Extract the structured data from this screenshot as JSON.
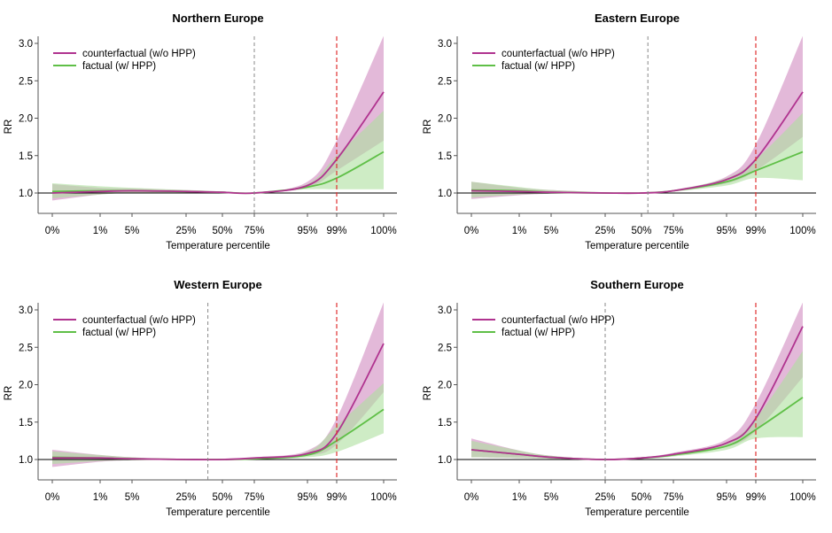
{
  "chart_data": [
    {
      "type": "line",
      "title": "Northern Europe",
      "xlabel": "Temperature percentile",
      "ylabel": "RR",
      "x_tick_labels": [
        "0%",
        "1%",
        "5%",
        "25%",
        "50%",
        "75%",
        "95%",
        "99%",
        "100%"
      ],
      "y_ticks": [
        1.0,
        1.5,
        2.0,
        2.5,
        3.0
      ],
      "y_tick_labels": [
        "1.0",
        "1.5",
        "2.0",
        "2.5",
        "3.0"
      ],
      "ylim": [
        0.85,
        3.1
      ],
      "mmt_percentile": 75,
      "threshold_percentile": 99,
      "x": [
        "0%",
        "1%",
        "5%",
        "25%",
        "50%",
        "75%",
        "95%",
        "99%",
        "100%"
      ],
      "series": [
        {
          "name": "counterfactual (w/o HPP)",
          "color": "#b0338f",
          "band_color": "#d9a2cc",
          "values": [
            1.0,
            1.02,
            1.03,
            1.02,
            1.01,
            1.0,
            1.1,
            1.45,
            2.35
          ],
          "lower": [
            0.9,
            0.98,
            1.0,
            1.0,
            1.0,
            1.0,
            1.07,
            1.3,
            1.7
          ],
          "upper": [
            1.12,
            1.07,
            1.06,
            1.04,
            1.02,
            1.0,
            1.15,
            1.7,
            3.1
          ]
        },
        {
          "name": "factual (w/ HPP)",
          "color": "#5fbf47",
          "band_color": "#aee09e",
          "values": [
            1.02,
            1.03,
            1.03,
            1.02,
            1.01,
            1.0,
            1.08,
            1.2,
            1.55
          ],
          "lower": [
            0.93,
            0.98,
            1.0,
            1.0,
            1.0,
            1.0,
            1.05,
            1.05,
            1.05
          ],
          "upper": [
            1.13,
            1.09,
            1.07,
            1.04,
            1.02,
            1.0,
            1.12,
            1.5,
            2.1
          ]
        }
      ]
    },
    {
      "type": "line",
      "title": "Eastern Europe",
      "xlabel": "Temperature percentile",
      "ylabel": "RR",
      "x_tick_labels": [
        "0%",
        "1%",
        "5%",
        "25%",
        "50%",
        "75%",
        "95%",
        "99%",
        "100%"
      ],
      "y_ticks": [
        1.0,
        1.5,
        2.0,
        2.5,
        3.0
      ],
      "y_tick_labels": [
        "1.0",
        "1.5",
        "2.0",
        "2.5",
        "3.0"
      ],
      "ylim": [
        0.85,
        3.1
      ],
      "mmt_percentile": 55,
      "threshold_percentile": 99,
      "x": [
        "0%",
        "1%",
        "5%",
        "25%",
        "50%",
        "75%",
        "95%",
        "99%",
        "100%"
      ],
      "series": [
        {
          "name": "counterfactual (w/o HPP)",
          "color": "#b0338f",
          "band_color": "#d9a2cc",
          "values": [
            1.03,
            1.02,
            1.01,
            1.0,
            1.0,
            1.03,
            1.18,
            1.45,
            2.35
          ],
          "lower": [
            0.92,
            0.97,
            0.99,
            1.0,
            1.0,
            1.02,
            1.13,
            1.3,
            1.75
          ],
          "upper": [
            1.15,
            1.07,
            1.04,
            1.01,
            1.0,
            1.04,
            1.22,
            1.65,
            3.1
          ]
        },
        {
          "name": "factual (w/ HPP)",
          "color": "#5fbf47",
          "band_color": "#aee09e",
          "values": [
            1.04,
            1.03,
            1.01,
            1.0,
            1.0,
            1.03,
            1.15,
            1.3,
            1.55
          ],
          "lower": [
            0.94,
            0.98,
            0.99,
            1.0,
            1.0,
            1.02,
            1.1,
            1.2,
            1.17
          ],
          "upper": [
            1.15,
            1.08,
            1.04,
            1.01,
            1.0,
            1.04,
            1.2,
            1.45,
            2.07
          ]
        }
      ]
    },
    {
      "type": "line",
      "title": "Western Europe",
      "xlabel": "Temperature percentile",
      "ylabel": "RR",
      "x_tick_labels": [
        "0%",
        "1%",
        "5%",
        "25%",
        "50%",
        "75%",
        "95%",
        "99%",
        "100%"
      ],
      "y_ticks": [
        1.0,
        1.5,
        2.0,
        2.5,
        3.0
      ],
      "y_tick_labels": [
        "1.0",
        "1.5",
        "2.0",
        "2.5",
        "3.0"
      ],
      "ylim": [
        0.85,
        3.1
      ],
      "mmt_percentile": 40,
      "threshold_percentile": 99,
      "x": [
        "0%",
        "1%",
        "5%",
        "25%",
        "50%",
        "75%",
        "95%",
        "99%",
        "100%"
      ],
      "series": [
        {
          "name": "counterfactual (w/o HPP)",
          "color": "#b0338f",
          "band_color": "#d9a2cc",
          "values": [
            1.02,
            1.02,
            1.01,
            1.0,
            1.0,
            1.02,
            1.08,
            1.35,
            2.55
          ],
          "lower": [
            0.9,
            0.97,
            0.99,
            1.0,
            1.0,
            1.01,
            1.05,
            1.2,
            1.9
          ],
          "upper": [
            1.13,
            1.06,
            1.03,
            1.0,
            1.0,
            1.03,
            1.12,
            1.55,
            3.1
          ]
        },
        {
          "name": "factual (w/ HPP)",
          "color": "#5fbf47",
          "band_color": "#aee09e",
          "values": [
            1.03,
            1.02,
            1.01,
            1.0,
            1.0,
            1.01,
            1.06,
            1.25,
            1.67
          ],
          "lower": [
            0.94,
            0.98,
            0.99,
            1.0,
            1.0,
            1.0,
            1.03,
            1.1,
            1.35
          ],
          "upper": [
            1.11,
            1.06,
            1.03,
            1.0,
            1.0,
            1.02,
            1.1,
            1.45,
            2.02
          ]
        }
      ]
    },
    {
      "type": "line",
      "title": "Southern Europe",
      "xlabel": "Temperature percentile",
      "ylabel": "RR",
      "x_tick_labels": [
        "0%",
        "1%",
        "5%",
        "25%",
        "50%",
        "75%",
        "95%",
        "99%",
        "100%"
      ],
      "y_ticks": [
        1.0,
        1.5,
        2.0,
        2.5,
        3.0
      ],
      "y_tick_labels": [
        "1.0",
        "1.5",
        "2.0",
        "2.5",
        "3.0"
      ],
      "ylim": [
        0.85,
        3.1
      ],
      "mmt_percentile": 25,
      "threshold_percentile": 99,
      "x": [
        "0%",
        "1%",
        "5%",
        "25%",
        "50%",
        "75%",
        "95%",
        "99%",
        "100%"
      ],
      "series": [
        {
          "name": "counterfactual (w/o HPP)",
          "color": "#b0338f",
          "band_color": "#d9a2cc",
          "values": [
            1.13,
            1.07,
            1.03,
            1.0,
            1.02,
            1.07,
            1.22,
            1.55,
            2.78
          ],
          "lower": [
            1.03,
            1.02,
            1.01,
            1.0,
            1.01,
            1.05,
            1.17,
            1.38,
            2.1
          ],
          "upper": [
            1.28,
            1.12,
            1.05,
            1.0,
            1.03,
            1.09,
            1.27,
            1.75,
            3.1
          ]
        },
        {
          "name": "factual (w/ HPP)",
          "color": "#5fbf47",
          "band_color": "#aee09e",
          "values": [
            1.13,
            1.07,
            1.03,
            1.0,
            1.02,
            1.06,
            1.18,
            1.4,
            1.83
          ],
          "lower": [
            1.03,
            1.02,
            1.01,
            1.0,
            1.01,
            1.04,
            1.13,
            1.28,
            1.3
          ],
          "upper": [
            1.25,
            1.12,
            1.05,
            1.0,
            1.03,
            1.08,
            1.23,
            1.55,
            2.45
          ]
        }
      ]
    }
  ]
}
